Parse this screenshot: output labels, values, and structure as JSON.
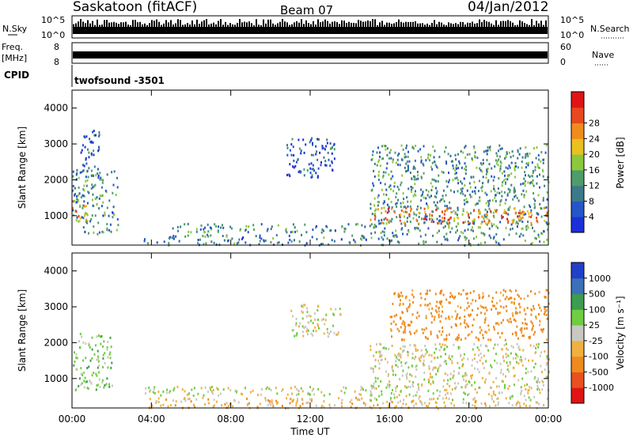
{
  "header": {
    "station": "Saskatoon (fitACF)",
    "beam": "Beam 07",
    "date": "04/Jan/2012"
  },
  "strip_labels": {
    "nsky": "N.Sky",
    "nsky_top": "10^5",
    "nsky_bot": "10^0",
    "freq_line1": "Freq.",
    "freq_line2": "[MHz]",
    "freq_top": "8",
    "freq_bot": "8",
    "cpid": "CPID",
    "cpid_value": "twofsound -3501",
    "nsearch": "N.Search",
    "nsearch_top": "10^5",
    "nsearch_bot": "10^0",
    "nave": "Nave",
    "nave_top": "60",
    "nave_bot": "0"
  },
  "colors": {
    "power_scale": [
      "#1a2fd8",
      "#2456c8",
      "#3c7a8a",
      "#4e9c6a",
      "#8cc83c",
      "#e8c020",
      "#f08c1c",
      "#e84820",
      "#e01414"
    ],
    "velocity_scale": [
      "#2040c8",
      "#3c70b8",
      "#3c9c50",
      "#70cc40",
      "#c8c8c0",
      "#f0b040",
      "#ee8a1e",
      "#e85020",
      "#e01414"
    ]
  },
  "chart_data": [
    {
      "type": "heatmap",
      "name": "power",
      "ylabel": "Slant Range [km]",
      "xlabel": "",
      "ylim": [
        180,
        4500
      ],
      "yticks": [
        "1000",
        "2000",
        "3000",
        "4000"
      ],
      "xticks": [
        "00:00",
        "04:00",
        "08:00",
        "12:00",
        "16:00",
        "20:00",
        "00:00"
      ],
      "colorbar": {
        "label": "Power [dB]",
        "ticks": [
          "4",
          "8",
          "12",
          "16",
          "20",
          "24",
          "28"
        ]
      },
      "regions": [
        {
          "t0": 0.0,
          "t1": 2.3,
          "r0": 500,
          "r1": 2300,
          "level": 9
        },
        {
          "t0": 0.4,
          "t1": 1.4,
          "r0": 2100,
          "r1": 3400,
          "level": 5
        },
        {
          "t0": 0.0,
          "t1": 0.8,
          "r0": 850,
          "r1": 1450,
          "level": 18
        },
        {
          "t0": 3.6,
          "t1": 15.0,
          "r0": 200,
          "r1": 500,
          "level": 8
        },
        {
          "t0": 5.0,
          "t1": 15.0,
          "r0": 560,
          "r1": 800,
          "level": 9
        },
        {
          "t0": 10.8,
          "t1": 13.2,
          "r0": 2100,
          "r1": 3200,
          "level": 5
        },
        {
          "t0": 15.0,
          "t1": 24.0,
          "r0": 200,
          "r1": 3000,
          "level": 10
        },
        {
          "t0": 15.0,
          "t1": 24.0,
          "r0": 800,
          "r1": 1250,
          "level": 21
        }
      ]
    },
    {
      "type": "heatmap",
      "name": "velocity",
      "ylabel": "Slant Range [km]",
      "xlabel": "Time UT",
      "ylim": [
        180,
        4500
      ],
      "yticks": [
        "1000",
        "2000",
        "3000",
        "4000"
      ],
      "xticks": [
        "00:00",
        "04:00",
        "08:00",
        "12:00",
        "16:00",
        "20:00",
        "00:00"
      ],
      "colorbar": {
        "label": "Velocity [m s⁻¹]",
        "ticks": [
          "1000",
          "500",
          "100",
          "25",
          "-25",
          "-100",
          "-500",
          "-1000"
        ]
      },
      "regions": [
        {
          "t0": 0.0,
          "t1": 2.0,
          "r0": 700,
          "r1": 2300,
          "level": 60
        },
        {
          "t0": 3.6,
          "t1": 15.0,
          "r0": 550,
          "r1": 800,
          "level": 0
        },
        {
          "t0": 3.6,
          "t1": 15.0,
          "r0": 200,
          "r1": 500,
          "level": -60
        },
        {
          "t0": 11.0,
          "t1": 13.5,
          "r0": 2200,
          "r1": 3100,
          "level": 0
        },
        {
          "t0": 15.0,
          "t1": 24.0,
          "r0": 400,
          "r1": 2000,
          "level": 0
        },
        {
          "t0": 16.0,
          "t1": 24.0,
          "r0": 2100,
          "r1": 3500,
          "level": -150
        },
        {
          "t0": 15.0,
          "t1": 24.0,
          "r0": 180,
          "r1": 400,
          "level": -60
        }
      ]
    }
  ]
}
